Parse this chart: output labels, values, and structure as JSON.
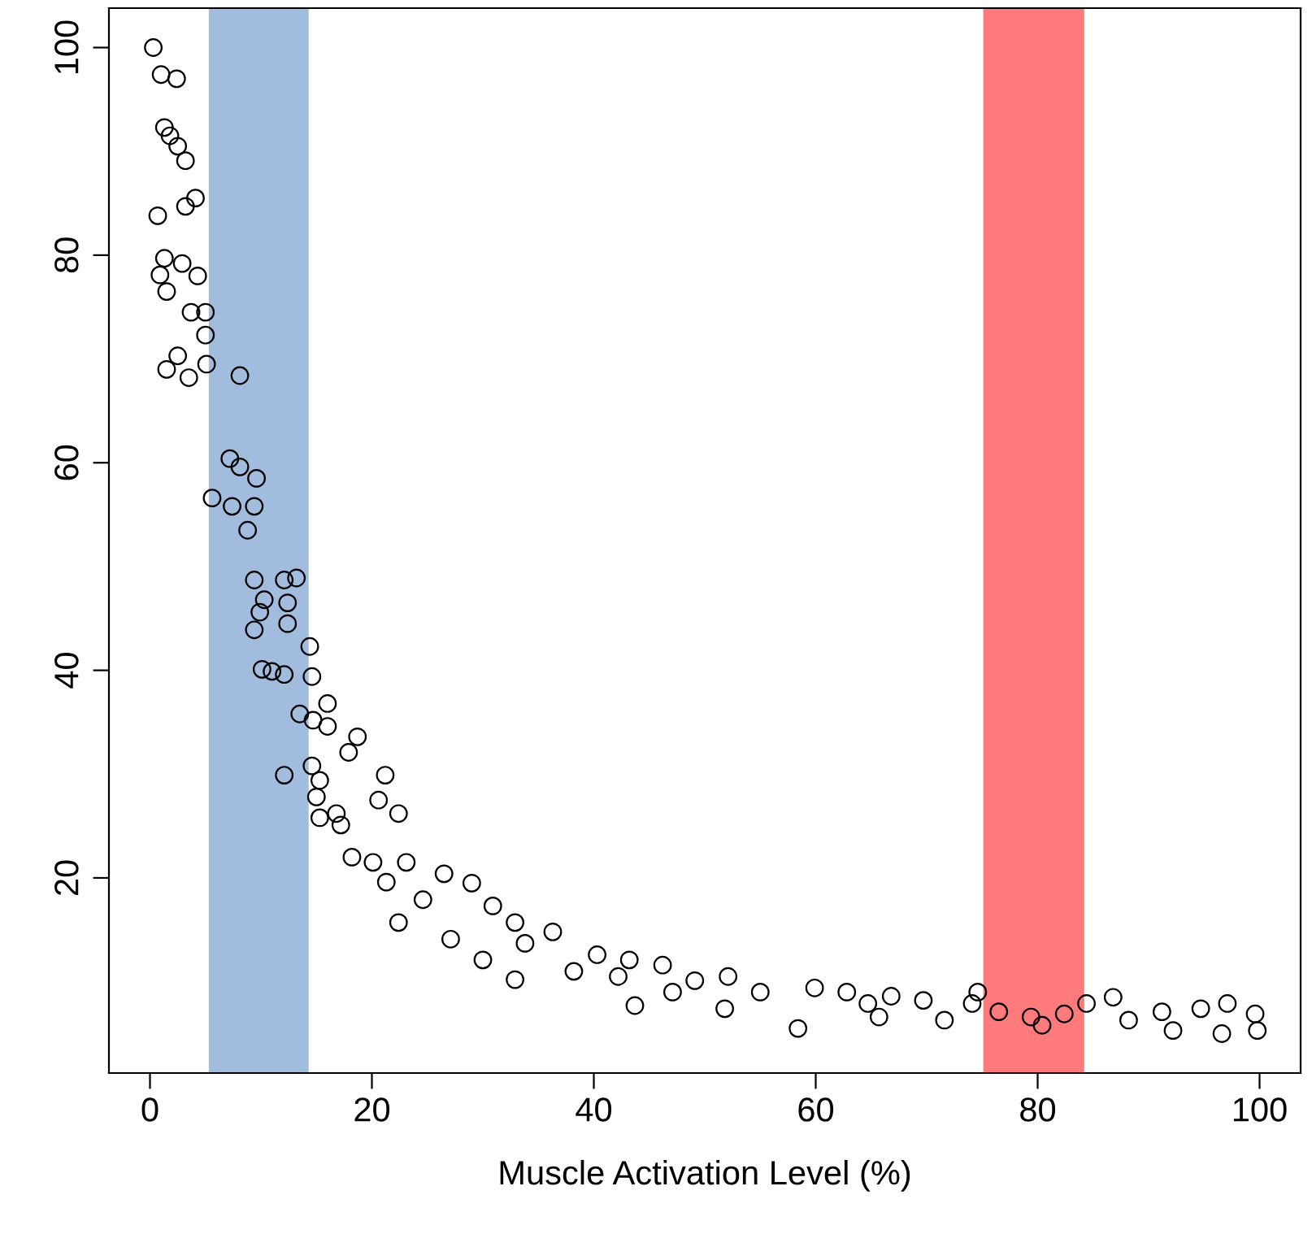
{
  "chart_data": {
    "type": "scatter",
    "xlabel": "Muscle Activation Level (%)",
    "marker": "circle",
    "grid": false,
    "xlim": [
      -3.7,
      103.7
    ],
    "ylim": [
      1.2,
      103.8
    ],
    "xticks": [
      0,
      20,
      40,
      60,
      80,
      100
    ],
    "yticks": [
      20,
      40,
      60,
      80,
      100
    ],
    "bands": [
      {
        "axis": "x",
        "from": 5.3,
        "to": 14.3,
        "color": "#a1bcdc"
      },
      {
        "axis": "x",
        "from": 75.1,
        "to": 84.2,
        "color": "#ff7a7a"
      }
    ],
    "series": [
      {
        "color": "#000000",
        "x": [
          0.3,
          1.0,
          2.4,
          1.3,
          1.8,
          2.5,
          3.2,
          4.1,
          3.2,
          0.7,
          1.3,
          2.9,
          4.3,
          0.9,
          1.5,
          3.7,
          5.0,
          5.0,
          2.5,
          1.5,
          3.5,
          5.1,
          8.1,
          7.2,
          8.1,
          9.6,
          5.6,
          7.4,
          9.4,
          8.8,
          9.4,
          12.1,
          13.2,
          10.3,
          12.4,
          9.9,
          12.4,
          9.4,
          14.4,
          10.1,
          11.0,
          12.1,
          14.6,
          16.0,
          13.5,
          14.7,
          16.0,
          18.7,
          12.1,
          14.6,
          17.9,
          21.2,
          15.0,
          16.8,
          15.3,
          15.3,
          17.2,
          20.6,
          22.4,
          18.2,
          20.1,
          23.1,
          21.3,
          22.4,
          24.6,
          26.5,
          29.0,
          30.9,
          27.1,
          30.0,
          32.9,
          33.8,
          32.9,
          36.3,
          38.2,
          40.3,
          42.2,
          43.7,
          46.2,
          47.1,
          43.2,
          49.1,
          52.1,
          55.0,
          58.4,
          59.9,
          62.8,
          64.7,
          66.8,
          69.7,
          71.6,
          74.1,
          76.5,
          79.4,
          82.4,
          84.4,
          86.8,
          88.2,
          91.2,
          94.7,
          97.1,
          99.6,
          99.8,
          96.6,
          92.2,
          51.8,
          65.7,
          80.4,
          74.6
        ],
        "values": [
          100.0,
          97.4,
          97.0,
          92.3,
          91.5,
          90.5,
          89.1,
          85.5,
          84.7,
          83.8,
          79.7,
          79.2,
          78.0,
          78.1,
          76.5,
          74.5,
          74.5,
          72.3,
          70.3,
          69.0,
          68.2,
          69.5,
          68.4,
          60.4,
          59.6,
          58.5,
          56.6,
          55.8,
          55.8,
          53.5,
          48.7,
          48.7,
          48.9,
          46.8,
          46.5,
          45.6,
          44.5,
          43.9,
          42.3,
          40.1,
          39.9,
          39.6,
          39.4,
          36.8,
          35.8,
          35.2,
          34.6,
          33.6,
          29.9,
          30.8,
          32.1,
          29.9,
          27.8,
          26.2,
          25.8,
          29.4,
          25.1,
          27.5,
          26.2,
          22.0,
          21.5,
          21.5,
          19.6,
          15.7,
          17.9,
          20.4,
          19.5,
          17.3,
          14.1,
          12.1,
          15.7,
          13.7,
          10.2,
          14.8,
          11.0,
          12.6,
          10.5,
          7.7,
          11.6,
          9.0,
          12.1,
          10.1,
          10.5,
          9.0,
          5.5,
          9.4,
          9.0,
          7.9,
          8.6,
          8.2,
          6.3,
          7.9,
          7.1,
          6.6,
          6.9,
          7.9,
          8.5,
          6.3,
          7.1,
          7.4,
          7.9,
          6.9,
          5.3,
          5.0,
          5.3,
          7.4,
          6.6,
          5.8,
          9.0
        ]
      }
    ]
  }
}
